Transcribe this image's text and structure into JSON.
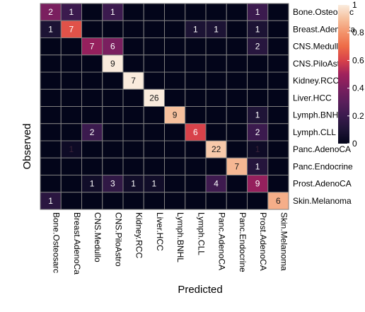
{
  "chart_data": {
    "type": "heatmap",
    "title": "",
    "xlabel": "Predicted",
    "ylabel": "Observed",
    "row_labels": [
      "Bone.Osteosarc",
      "Breast.AdenoCa",
      "CNS.Medullo",
      "CNS.PiloAstro",
      "Kidney.RCC",
      "Liver.HCC",
      "Lymph.BNHL",
      "Lymph.CLL",
      "Panc.AdenoCA",
      "Panc.Endocrine",
      "Prost.AdenoCA",
      "Skin.Melanoma"
    ],
    "col_labels": [
      "Bone.Osteosarc",
      "Breast.AdenoCa",
      "CNS.Medullo",
      "CNS.PiloAstro",
      "Kidney.RCC",
      "Liver.HCC",
      "Lymph.BNHL",
      "Lymph.CLL",
      "Panc.AdenoCA",
      "Panc.Endocrine",
      "Prost.AdenoCA",
      "Skin.Melanoma"
    ],
    "values": [
      [
        2,
        1,
        0,
        1,
        0,
        0,
        0,
        0,
        0,
        0,
        1,
        0
      ],
      [
        1,
        7,
        0,
        0,
        0,
        0,
        0,
        1,
        1,
        0,
        1,
        0
      ],
      [
        0,
        0,
        7,
        6,
        0,
        0,
        0,
        0,
        0,
        0,
        2,
        0
      ],
      [
        0,
        0,
        0,
        9,
        0,
        0,
        0,
        0,
        0,
        0,
        0,
        0
      ],
      [
        0,
        0,
        0,
        0,
        7,
        0,
        0,
        0,
        0,
        0,
        0,
        0
      ],
      [
        0,
        0,
        0,
        0,
        0,
        26,
        0,
        0,
        0,
        0,
        0,
        0
      ],
      [
        0,
        0,
        0,
        0,
        0,
        0,
        9,
        0,
        0,
        0,
        1,
        0
      ],
      [
        0,
        0,
        2,
        0,
        0,
        0,
        0,
        6,
        0,
        0,
        2,
        0
      ],
      [
        0,
        1,
        0,
        0,
        0,
        0,
        0,
        0,
        22,
        0,
        1,
        0
      ],
      [
        0,
        0,
        0,
        0,
        0,
        0,
        0,
        0,
        0,
        7,
        1,
        0
      ],
      [
        0,
        0,
        1,
        3,
        1,
        1,
        0,
        0,
        4,
        0,
        9,
        0
      ],
      [
        1,
        0,
        0,
        0,
        0,
        0,
        0,
        0,
        0,
        0,
        0,
        6
      ]
    ],
    "row_normalized_fill": [
      [
        0.4,
        0.2,
        0.0,
        0.2,
        0.0,
        0.0,
        0.0,
        0.0,
        0.0,
        0.0,
        0.2,
        0.0
      ],
      [
        0.09,
        0.64,
        0.0,
        0.0,
        0.0,
        0.0,
        0.0,
        0.09,
        0.09,
        0.0,
        0.09,
        0.0
      ],
      [
        0.0,
        0.0,
        0.47,
        0.4,
        0.0,
        0.0,
        0.0,
        0.0,
        0.0,
        0.0,
        0.13,
        0.0
      ],
      [
        0.0,
        0.0,
        0.0,
        1.0,
        0.0,
        0.0,
        0.0,
        0.0,
        0.0,
        0.0,
        0.0,
        0.0
      ],
      [
        0.0,
        0.0,
        0.0,
        0.0,
        1.0,
        0.0,
        0.0,
        0.0,
        0.0,
        0.0,
        0.0,
        0.0
      ],
      [
        0.0,
        0.0,
        0.0,
        0.0,
        0.0,
        1.0,
        0.0,
        0.0,
        0.0,
        0.0,
        0.0,
        0.0
      ],
      [
        0.0,
        0.0,
        0.0,
        0.0,
        0.0,
        0.0,
        0.9,
        0.0,
        0.0,
        0.0,
        0.1,
        0.0
      ],
      [
        0.0,
        0.0,
        0.2,
        0.0,
        0.0,
        0.0,
        0.0,
        0.6,
        0.0,
        0.0,
        0.2,
        0.0
      ],
      [
        0.0,
        0.04,
        0.0,
        0.0,
        0.0,
        0.0,
        0.0,
        0.0,
        0.92,
        0.0,
        0.04,
        0.0
      ],
      [
        0.0,
        0.0,
        0.0,
        0.0,
        0.0,
        0.0,
        0.0,
        0.0,
        0.0,
        0.88,
        0.12,
        0.0
      ],
      [
        0.0,
        0.0,
        0.05,
        0.16,
        0.05,
        0.05,
        0.0,
        0.0,
        0.21,
        0.0,
        0.47,
        0.0
      ],
      [
        0.14,
        0.0,
        0.0,
        0.0,
        0.0,
        0.0,
        0.0,
        0.0,
        0.0,
        0.0,
        0.0,
        0.86
      ]
    ],
    "show_zero_labels": false,
    "colorbar": {
      "ticks": [
        "0",
        "0.2",
        "0.4",
        "0.6",
        "0.8",
        "1"
      ],
      "tick_values": [
        0,
        0.2,
        0.4,
        0.6,
        0.8,
        1
      ],
      "range": [
        0,
        1
      ],
      "placement": "right"
    },
    "colormap": {
      "name": "rocket",
      "stops": [
        [
          0.0,
          "#03051a"
        ],
        [
          0.1,
          "#1f1437"
        ],
        [
          0.2,
          "#3b1a4e"
        ],
        [
          0.3,
          "#5a1e5b"
        ],
        [
          0.4,
          "#7a1f5f"
        ],
        [
          0.5,
          "#a0215c"
        ],
        [
          0.6,
          "#d8424a"
        ],
        [
          0.7,
          "#ee6b47"
        ],
        [
          0.8,
          "#f3936b"
        ],
        [
          0.9,
          "#f6c09d"
        ],
        [
          1.0,
          "#faebdd"
        ]
      ]
    },
    "grid_color": "#7f7f7f"
  }
}
